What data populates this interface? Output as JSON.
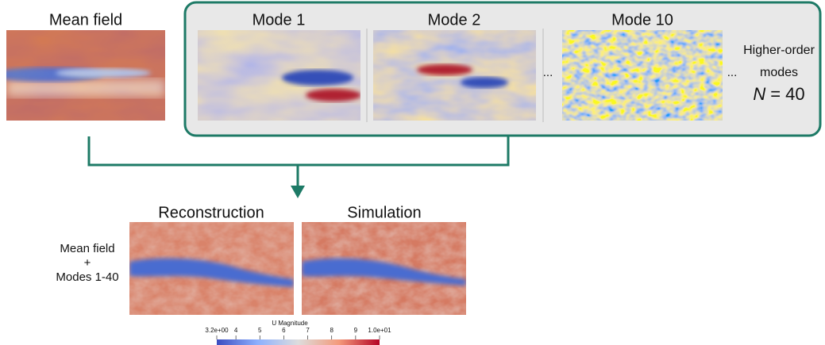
{
  "mean_field": {
    "label": "Mean field"
  },
  "modes": [
    {
      "label": "Mode 1"
    },
    {
      "label": "Mode 2"
    },
    {
      "label": "Mode 10"
    }
  ],
  "ellipses": [
    "...",
    "..."
  ],
  "higher_order": {
    "line1": "Higher-order",
    "line2": "modes",
    "count_symbol": "N",
    "count_text": "= 40"
  },
  "results": {
    "left_label": [
      "Mean field",
      "+",
      "Modes 1-40"
    ],
    "panels": [
      "Reconstruction",
      "Simulation"
    ]
  },
  "colorbar": {
    "title": "U Magnitude",
    "range": [
      3.2,
      10
    ],
    "ticks": [
      {
        "value": 3.2,
        "label": "3.2e+00"
      },
      4,
      5,
      6,
      7,
      8,
      9,
      {
        "value": 10,
        "label": "1.0e+01"
      }
    ]
  }
}
